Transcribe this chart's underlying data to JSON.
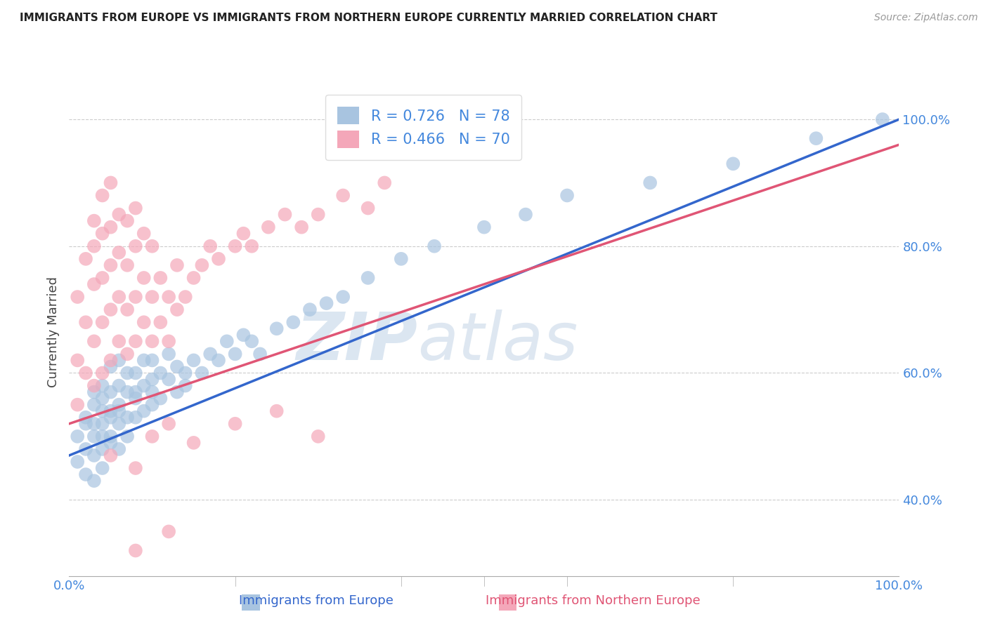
{
  "title": "IMMIGRANTS FROM EUROPE VS IMMIGRANTS FROM NORTHERN EUROPE CURRENTLY MARRIED CORRELATION CHART",
  "source": "Source: ZipAtlas.com",
  "ylabel": "Currently Married",
  "xaxis_label_blue": "Immigrants from Europe",
  "xaxis_label_pink": "Immigrants from Northern Europe",
  "x_min": 0.0,
  "x_max": 1.0,
  "y_min": 0.28,
  "y_max": 1.05,
  "y_ticks": [
    0.4,
    0.6,
    0.8,
    1.0
  ],
  "y_tick_labels": [
    "40.0%",
    "60.0%",
    "80.0%",
    "100.0%"
  ],
  "blue_R": 0.726,
  "blue_N": 78,
  "pink_R": 0.466,
  "pink_N": 70,
  "blue_color": "#a8c4e0",
  "pink_color": "#f4a7b9",
  "blue_line_color": "#3366cc",
  "pink_line_color": "#e05575",
  "tick_color": "#4488dd",
  "watermark_zip": "ZIP",
  "watermark_atlas": "atlas",
  "background_color": "#ffffff",
  "grid_color": "#cccccc",
  "blue_scatter_x": [
    0.01,
    0.01,
    0.02,
    0.02,
    0.02,
    0.02,
    0.03,
    0.03,
    0.03,
    0.03,
    0.03,
    0.03,
    0.04,
    0.04,
    0.04,
    0.04,
    0.04,
    0.04,
    0.04,
    0.05,
    0.05,
    0.05,
    0.05,
    0.05,
    0.05,
    0.06,
    0.06,
    0.06,
    0.06,
    0.06,
    0.06,
    0.07,
    0.07,
    0.07,
    0.07,
    0.08,
    0.08,
    0.08,
    0.08,
    0.09,
    0.09,
    0.09,
    0.1,
    0.1,
    0.1,
    0.1,
    0.11,
    0.11,
    0.12,
    0.12,
    0.13,
    0.13,
    0.14,
    0.14,
    0.15,
    0.16,
    0.17,
    0.18,
    0.19,
    0.2,
    0.21,
    0.22,
    0.23,
    0.25,
    0.27,
    0.29,
    0.31,
    0.33,
    0.36,
    0.4,
    0.44,
    0.5,
    0.55,
    0.6,
    0.7,
    0.8,
    0.9,
    0.98
  ],
  "blue_scatter_y": [
    0.46,
    0.5,
    0.48,
    0.52,
    0.44,
    0.53,
    0.5,
    0.47,
    0.55,
    0.52,
    0.57,
    0.43,
    0.5,
    0.54,
    0.48,
    0.58,
    0.52,
    0.45,
    0.56,
    0.53,
    0.49,
    0.57,
    0.54,
    0.5,
    0.61,
    0.55,
    0.52,
    0.58,
    0.48,
    0.62,
    0.54,
    0.57,
    0.53,
    0.6,
    0.5,
    0.56,
    0.53,
    0.6,
    0.57,
    0.58,
    0.54,
    0.62,
    0.57,
    0.55,
    0.62,
    0.59,
    0.6,
    0.56,
    0.59,
    0.63,
    0.57,
    0.61,
    0.6,
    0.58,
    0.62,
    0.6,
    0.63,
    0.62,
    0.65,
    0.63,
    0.66,
    0.65,
    0.63,
    0.67,
    0.68,
    0.7,
    0.71,
    0.72,
    0.75,
    0.78,
    0.8,
    0.83,
    0.85,
    0.88,
    0.9,
    0.93,
    0.97,
    1.0
  ],
  "pink_scatter_x": [
    0.01,
    0.01,
    0.01,
    0.02,
    0.02,
    0.02,
    0.03,
    0.03,
    0.03,
    0.03,
    0.03,
    0.04,
    0.04,
    0.04,
    0.04,
    0.04,
    0.05,
    0.05,
    0.05,
    0.05,
    0.05,
    0.06,
    0.06,
    0.06,
    0.06,
    0.07,
    0.07,
    0.07,
    0.07,
    0.08,
    0.08,
    0.08,
    0.08,
    0.09,
    0.09,
    0.09,
    0.1,
    0.1,
    0.1,
    0.11,
    0.11,
    0.12,
    0.12,
    0.13,
    0.13,
    0.14,
    0.15,
    0.16,
    0.17,
    0.18,
    0.2,
    0.21,
    0.22,
    0.24,
    0.26,
    0.28,
    0.3,
    0.33,
    0.36,
    0.38,
    0.05,
    0.08,
    0.1,
    0.12,
    0.15,
    0.2,
    0.25,
    0.3,
    0.08,
    0.12
  ],
  "pink_scatter_y": [
    0.55,
    0.62,
    0.72,
    0.6,
    0.68,
    0.78,
    0.58,
    0.65,
    0.74,
    0.8,
    0.84,
    0.6,
    0.68,
    0.75,
    0.82,
    0.88,
    0.62,
    0.7,
    0.77,
    0.83,
    0.9,
    0.65,
    0.72,
    0.79,
    0.85,
    0.63,
    0.7,
    0.77,
    0.84,
    0.65,
    0.72,
    0.8,
    0.86,
    0.68,
    0.75,
    0.82,
    0.65,
    0.72,
    0.8,
    0.68,
    0.75,
    0.65,
    0.72,
    0.7,
    0.77,
    0.72,
    0.75,
    0.77,
    0.8,
    0.78,
    0.8,
    0.82,
    0.8,
    0.83,
    0.85,
    0.83,
    0.85,
    0.88,
    0.86,
    0.9,
    0.47,
    0.45,
    0.5,
    0.52,
    0.49,
    0.52,
    0.54,
    0.5,
    0.32,
    0.35
  ],
  "blue_line_start_y": 0.47,
  "blue_line_end_y": 1.0,
  "pink_line_start_y": 0.52,
  "pink_line_end_y": 0.96
}
